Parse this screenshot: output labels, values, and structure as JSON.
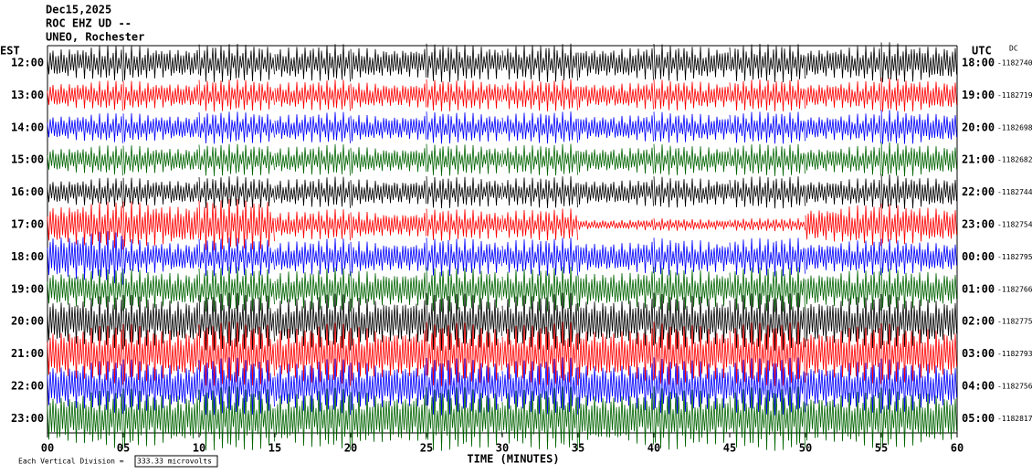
{
  "chart_data": {
    "type": "helicorder",
    "title": "Dec15,2025",
    "station": "ROC EHZ UD --",
    "network": "UNEO, Rochester",
    "left_zone": "EST",
    "right_zone": "UTC",
    "dc_label": "DC",
    "xlabel": "TIME (MINUTES)",
    "scale_caption": "Each Vertical Division =",
    "scale_value": "333.33 microvolts",
    "xlim": [
      0,
      60
    ],
    "xticks": [
      {
        "value": 0,
        "label": "00"
      },
      {
        "value": 5,
        "label": "05"
      },
      10,
      15,
      20,
      25,
      30,
      35,
      40,
      45,
      50,
      55,
      60
    ],
    "colors": [
      "#000000",
      "#ff0000",
      "#0000ff",
      "#006400"
    ],
    "rows": [
      {
        "local": "12:00",
        "utc": "18:00",
        "dc": -1182740,
        "amplitude": [
          0.6,
          0.6,
          0.6,
          0.6,
          0.6,
          0.6,
          0.6,
          0.6,
          0.6,
          0.6,
          0.6,
          0.7
        ]
      },
      {
        "local": "13:00",
        "utc": "19:00",
        "dc": -1182719,
        "amplitude": [
          0.5,
          0.5,
          0.5,
          0.5,
          0.5,
          0.5,
          0.5,
          0.5,
          0.5,
          0.5,
          0.5,
          0.6
        ]
      },
      {
        "local": "14:00",
        "utc": "20:00",
        "dc": -1182698,
        "amplitude": [
          0.5,
          0.5,
          0.5,
          0.5,
          0.5,
          0.5,
          0.5,
          0.5,
          0.5,
          0.5,
          0.5,
          0.6
        ]
      },
      {
        "local": "15:00",
        "utc": "21:00",
        "dc": -1182682,
        "amplitude": [
          0.5,
          0.5,
          0.5,
          0.5,
          0.5,
          0.5,
          0.5,
          0.5,
          0.5,
          0.5,
          0.5,
          0.6
        ]
      },
      {
        "local": "16:00",
        "utc": "22:00",
        "dc": -1182744,
        "amplitude": [
          0.5,
          0.5,
          0.5,
          0.5,
          0.5,
          0.5,
          0.5,
          0.5,
          0.5,
          0.5,
          0.5,
          0.6
        ]
      },
      {
        "local": "17:00",
        "utc": "23:00",
        "dc": -1182754,
        "amplitude": [
          0.8,
          0.8,
          0.8,
          0.5,
          0.5,
          0.5,
          0.5,
          0.2,
          0.2,
          0.2,
          0.7,
          0.7
        ]
      },
      {
        "local": "18:00",
        "utc": "00:00",
        "dc": -1182795,
        "amplitude": [
          0.9,
          0.6,
          0.6,
          0.6,
          0.6,
          0.6,
          0.6,
          0.6,
          0.6,
          0.6,
          0.6,
          0.6
        ]
      },
      {
        "local": "19:00",
        "utc": "01:00",
        "dc": -1182766,
        "amplitude": [
          0.7,
          0.7,
          0.7,
          0.7,
          0.7,
          0.7,
          0.7,
          0.7,
          0.7,
          0.7,
          0.7,
          0.7
        ]
      },
      {
        "local": "20:00",
        "utc": "02:00",
        "dc": -1182775,
        "amplitude": [
          0.9,
          0.9,
          0.9,
          0.9,
          0.9,
          0.9,
          0.9,
          0.9,
          0.9,
          0.9,
          0.9,
          0.9
        ]
      },
      {
        "local": "21:00",
        "utc": "03:00",
        "dc": -1182793,
        "amplitude": [
          1.0,
          1.0,
          1.0,
          1.0,
          1.0,
          1.0,
          1.0,
          1.0,
          1.0,
          1.0,
          1.0,
          1.0
        ]
      },
      {
        "local": "22:00",
        "utc": "04:00",
        "dc": -1182756,
        "amplitude": [
          0.9,
          0.9,
          0.9,
          0.9,
          0.9,
          0.9,
          0.9,
          0.9,
          0.9,
          0.9,
          0.9,
          0.9
        ]
      },
      {
        "local": "23:00",
        "utc": "05:00",
        "dc": -1182817,
        "amplitude": [
          1.0,
          1.0,
          1.0,
          1.0,
          1.0,
          1.0,
          1.0,
          1.0,
          1.0,
          1.0,
          1.0,
          1.0
        ]
      }
    ]
  }
}
